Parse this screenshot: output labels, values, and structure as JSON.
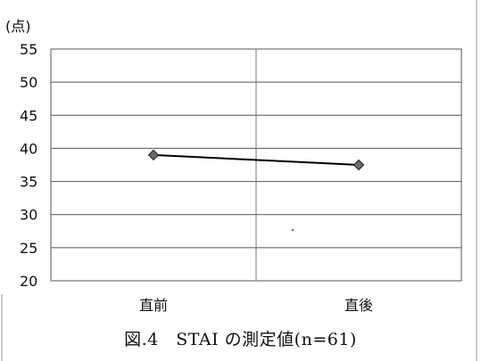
{
  "chart_data": {
    "type": "line",
    "unit_label": "(点)",
    "categories": [
      "直前",
      "直後"
    ],
    "series": [
      {
        "values": [
          39.0,
          37.5
        ],
        "color": "#000000",
        "marker": "diamond",
        "marker_color": "#6b6b6b"
      }
    ],
    "ylim": [
      20,
      55
    ],
    "yticks": [
      20,
      25,
      30,
      35,
      40,
      45,
      50,
      55
    ],
    "grid": true,
    "legend": "none",
    "caption": "図.4　STAI の測定値(n=61)"
  }
}
